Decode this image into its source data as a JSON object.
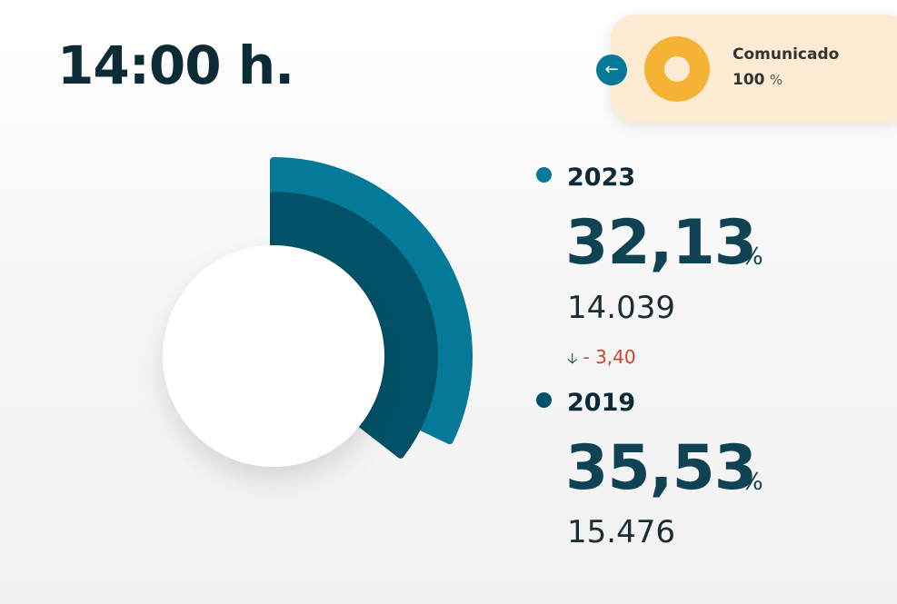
{
  "header": {
    "time": "14:00 h."
  },
  "status_card": {
    "label": "Comunicado",
    "value": "100",
    "unit": "%",
    "back_icon": "arrow-left-icon",
    "progress_fraction": 1.0,
    "colors": {
      "card": "#fdebd3",
      "ring": "#f5b335",
      "button": "#057a98"
    }
  },
  "chart_data": {
    "type": "pie",
    "series": [
      {
        "name": "2023",
        "value": 32.13,
        "color": "#057a98"
      },
      {
        "name": "2019",
        "value": 35.53,
        "color": "#015268"
      }
    ]
  },
  "stats": [
    {
      "year": "2023",
      "percent": "32,13",
      "unit": "%",
      "count": "14.039",
      "color": "#057a98"
    },
    {
      "year": "2019",
      "percent": "35,53",
      "unit": "%",
      "count": "15.476",
      "color": "#015268"
    }
  ],
  "difference": {
    "value": "- 3,40",
    "arrow_icon": "arrow-down-icon"
  }
}
